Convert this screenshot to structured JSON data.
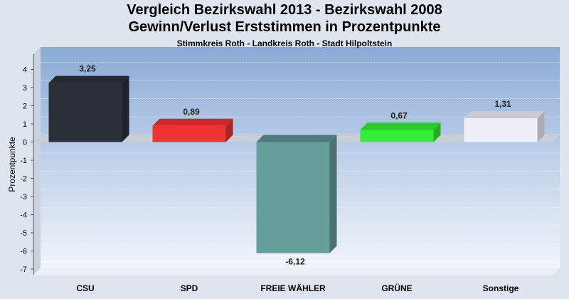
{
  "chart_data": {
    "type": "bar",
    "title": "Vergleich Bezirkswahl 2013 - Bezirkswahl 2008",
    "subtitle": "Gewinn/Verlust Erststimmen in Prozentpunkte",
    "caption": "Stimmkreis Roth - Landkreis Roth - Stadt Hilpoltstein",
    "ylabel": "Prozentpunkte",
    "xlabel": "",
    "ylim": [
      -7.5,
      5
    ],
    "yticks": [
      4,
      3,
      2,
      1,
      0,
      -1,
      -2,
      -3,
      -4,
      -5,
      -6,
      -7
    ],
    "categories": [
      "CSU",
      "SPD",
      "FREIE WÄHLER",
      "GRÜNE",
      "Sonstige"
    ],
    "values": [
      3.25,
      0.89,
      -6.12,
      0.67,
      1.31
    ],
    "value_labels": [
      "3,25",
      "0,89",
      "-6,12",
      "0,67",
      "1,31"
    ],
    "colors": [
      "#2b2f3a",
      "#ee3333",
      "#669e9c",
      "#33ee33",
      "#eef0f8"
    ],
    "legend": "none",
    "grid": true
  }
}
